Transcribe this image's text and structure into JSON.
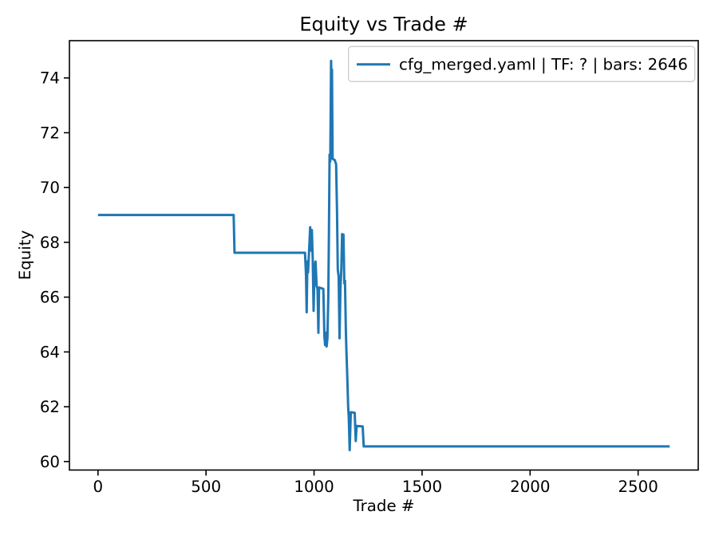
{
  "chart_data": {
    "type": "line",
    "title": "Equity vs Trade #",
    "xlabel": "Trade #",
    "ylabel": "Equity",
    "xlim": [
      -132.3,
      2778.3
    ],
    "ylim": [
      59.69,
      75.36
    ],
    "xticks": [
      0,
      500,
      1000,
      1500,
      2000,
      2500
    ],
    "yticks": [
      60,
      62,
      64,
      66,
      68,
      70,
      72,
      74
    ],
    "grid": false,
    "legend": {
      "position": "upper right",
      "entries": [
        {
          "label": "cfg_merged.yaml | TF: ? | bars: 2646",
          "color": "#1f77b4"
        }
      ]
    },
    "series": [
      {
        "name": "cfg_merged.yaml | TF: ? | bars: 2646",
        "color": "#1f77b4",
        "points": [
          [
            0,
            69.0
          ],
          [
            628,
            69.0
          ],
          [
            632,
            67.62
          ],
          [
            958,
            67.62
          ],
          [
            963,
            66.8
          ],
          [
            966,
            65.45
          ],
          [
            969,
            67.3
          ],
          [
            972,
            66.9
          ],
          [
            976,
            67.55
          ],
          [
            982,
            68.55
          ],
          [
            986,
            67.7
          ],
          [
            990,
            68.45
          ],
          [
            994,
            67.4
          ],
          [
            998,
            65.5
          ],
          [
            1002,
            67.0
          ],
          [
            1007,
            67.3
          ],
          [
            1012,
            66.4
          ],
          [
            1016,
            66.3
          ],
          [
            1020,
            64.7
          ],
          [
            1023,
            66.35
          ],
          [
            1043,
            66.3
          ],
          [
            1048,
            64.6
          ],
          [
            1051,
            64.25
          ],
          [
            1055,
            64.7
          ],
          [
            1058,
            64.2
          ],
          [
            1062,
            64.5
          ],
          [
            1066,
            66.0
          ],
          [
            1069,
            68.3
          ],
          [
            1072,
            71.2
          ],
          [
            1075,
            70.95
          ],
          [
            1079,
            74.62
          ],
          [
            1081,
            73.6
          ],
          [
            1083,
            74.3
          ],
          [
            1086,
            71.05
          ],
          [
            1096,
            71.0
          ],
          [
            1102,
            70.85
          ],
          [
            1106,
            69.2
          ],
          [
            1110,
            67.0
          ],
          [
            1114,
            66.75
          ],
          [
            1118,
            64.5
          ],
          [
            1122,
            66.3
          ],
          [
            1126,
            67.0
          ],
          [
            1130,
            68.3
          ],
          [
            1133,
            68.0
          ],
          [
            1136,
            68.28
          ],
          [
            1140,
            66.5
          ],
          [
            1143,
            66.6
          ],
          [
            1147,
            64.8
          ],
          [
            1150,
            63.95
          ],
          [
            1154,
            63.1
          ],
          [
            1158,
            62.0
          ],
          [
            1161,
            61.6
          ],
          [
            1165,
            60.42
          ],
          [
            1170,
            61.8
          ],
          [
            1188,
            61.78
          ],
          [
            1193,
            60.75
          ],
          [
            1197,
            61.3
          ],
          [
            1225,
            61.28
          ],
          [
            1230,
            60.55
          ],
          [
            2646,
            60.55
          ]
        ]
      }
    ]
  },
  "colors": {
    "line": "#1f77b4",
    "axis": "#000000",
    "legend_border": "#cccccc",
    "background": "#ffffff"
  }
}
